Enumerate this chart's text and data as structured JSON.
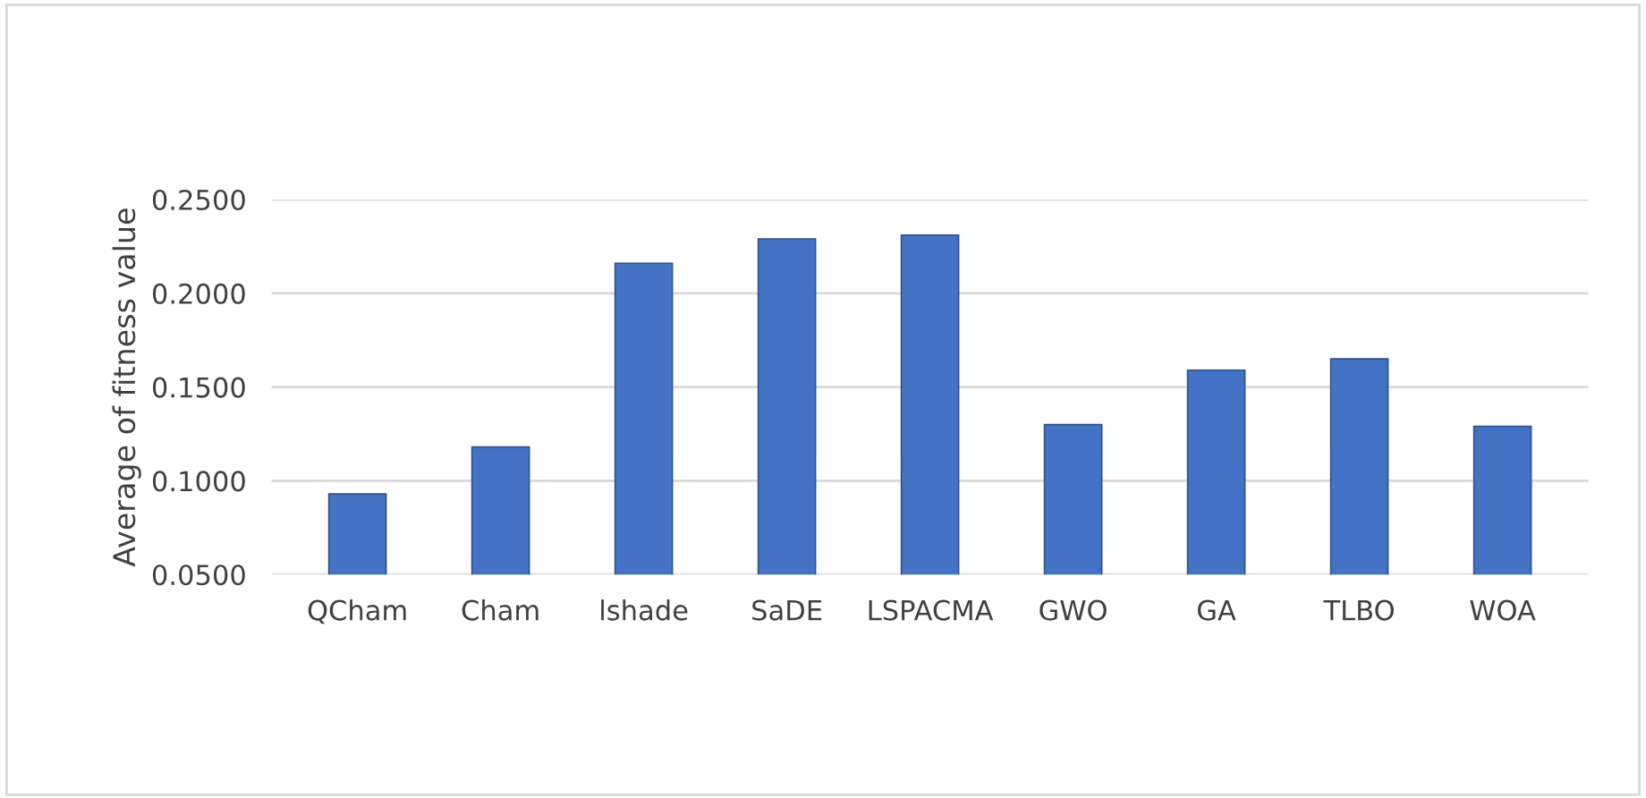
{
  "chart_data": {
    "type": "bar",
    "ylabel": "Average of fitness value",
    "categories": [
      "QCham",
      "Cham",
      "lshade",
      "SaDE",
      "LSPACMA",
      "GWO",
      "GA",
      "TLBO",
      "WOA"
    ],
    "values": [
      0.093,
      0.118,
      0.216,
      0.229,
      0.231,
      0.13,
      0.159,
      0.165,
      0.129
    ],
    "color": "#4472c4",
    "ylim": [
      0.05,
      0.25
    ],
    "yticks": [
      {
        "value": 0.05,
        "label": "0.0500"
      },
      {
        "value": 0.1,
        "label": "0.1000"
      },
      {
        "value": 0.15,
        "label": "0.1500"
      },
      {
        "value": 0.2,
        "label": "0.2000"
      },
      {
        "value": 0.25,
        "label": "0.2500"
      }
    ],
    "grid": "y"
  }
}
